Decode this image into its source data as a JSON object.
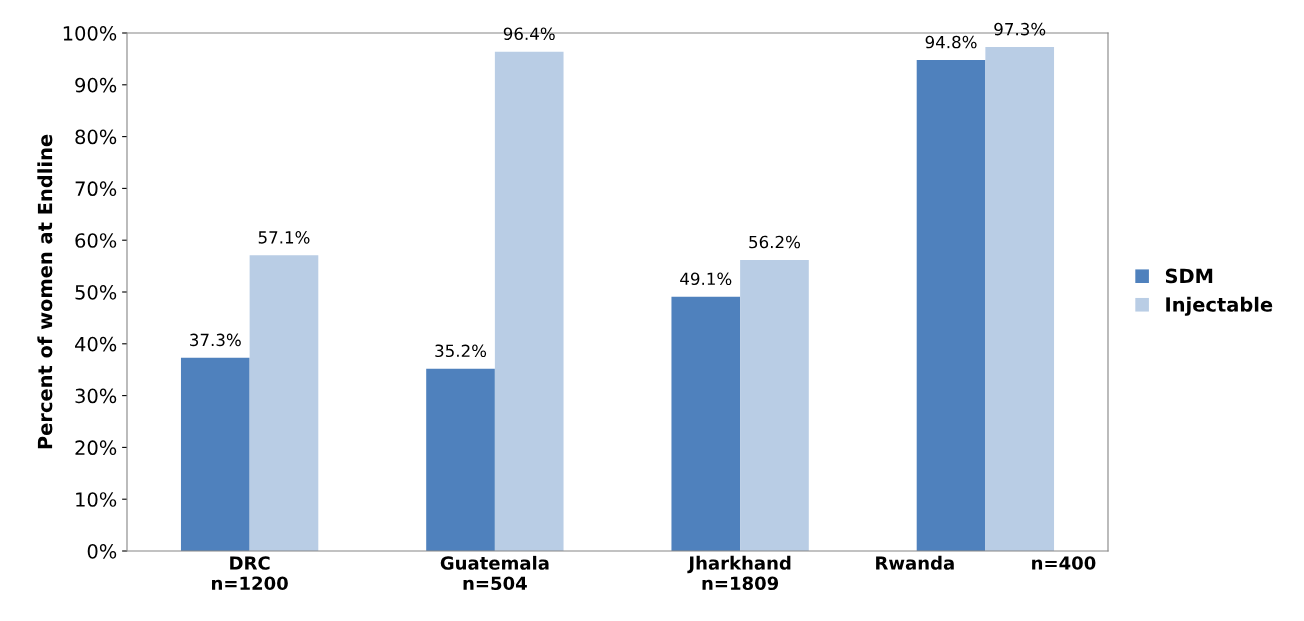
{
  "chart_data": {
    "type": "bar",
    "ylabel": "Percent of women at Endline",
    "categories": [
      "DRC\nn=1200",
      "Guatemala\nn=504",
      "Jharkhand\nn=1809",
      "Rwanda            n=400"
    ],
    "series": [
      {
        "name": "SDM",
        "color": "#4f81bd",
        "values": [
          37.3,
          35.2,
          49.1,
          94.8
        ],
        "value_labels": [
          "37.3%",
          "35.2%",
          "49.1%",
          "94.8%"
        ]
      },
      {
        "name": "Injectable",
        "color": "#b9cde5",
        "values": [
          57.1,
          96.4,
          56.2,
          97.3
        ],
        "value_labels": [
          "57.1%",
          "96.4%",
          "56.2%",
          "97.3%"
        ]
      }
    ],
    "ylim": [
      0,
      100
    ],
    "yticks": [
      {
        "value": 0,
        "label": "0%"
      },
      {
        "value": 10,
        "label": "10%"
      },
      {
        "value": 20,
        "label": "20%"
      },
      {
        "value": 30,
        "label": "30%"
      },
      {
        "value": 40,
        "label": "40%"
      },
      {
        "value": 50,
        "label": "50%"
      },
      {
        "value": 60,
        "label": "60%"
      },
      {
        "value": 70,
        "label": "70%"
      },
      {
        "value": 80,
        "label": "80%"
      },
      {
        "value": 90,
        "label": "90%"
      },
      {
        "value": 100,
        "label": "100%"
      }
    ],
    "grid": false,
    "legend": "right"
  }
}
